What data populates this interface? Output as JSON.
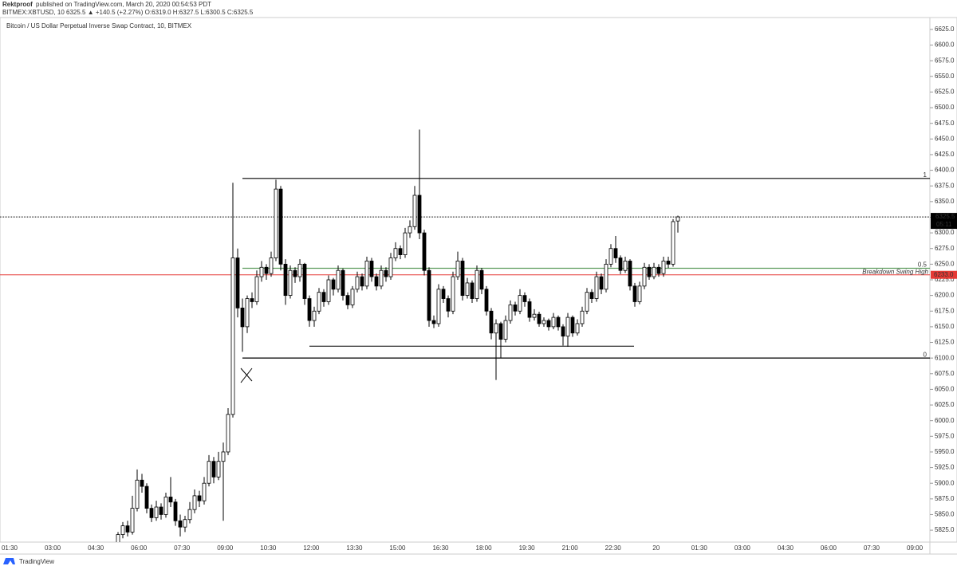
{
  "header": {
    "author": "Rektproof",
    "published": "published on TradingView.com, March 20, 2020 00:54:53 PDT",
    "symbol_line": "BITMEX:XBTUSD, 10  6325.5 ▲ +140.5 (+2.27%) O:6319.0 H:6327.5 L:6300.5 C:6325.5"
  },
  "chart_data": {
    "type": "candlestick",
    "title": "Bitcoin / US Dollar Perpetual Inverse Swap Contract, 10, BITMEX",
    "x_labels": [
      "01:30",
      "03:00",
      "04:30",
      "06:00",
      "07:30",
      "09:00",
      "10:30",
      "12:00",
      "13:30",
      "15:00",
      "16:30",
      "18:00",
      "19:30",
      "21:00",
      "22:30",
      "20",
      "01:30",
      "03:00",
      "04:30",
      "06:00",
      "07:30",
      "09:00"
    ],
    "ylim": [
      5806,
      6644
    ],
    "yticks": [
      {
        "value": 5825,
        "label": "5825.0"
      },
      {
        "value": 5850,
        "label": "5850.0"
      },
      {
        "value": 5875,
        "label": "5875.0"
      },
      {
        "value": 5900,
        "label": "5900.0"
      },
      {
        "value": 5925,
        "label": "5925.0"
      },
      {
        "value": 5950,
        "label": "5950.0"
      },
      {
        "value": 5975,
        "label": "5975.0"
      },
      {
        "value": 6000,
        "label": "6000.0"
      },
      {
        "value": 6025,
        "label": "6025.0"
      },
      {
        "value": 6050,
        "label": "6050.0"
      },
      {
        "value": 6075,
        "label": "6075.0"
      },
      {
        "value": 6100,
        "label": "6100.0"
      },
      {
        "value": 6125,
        "label": "6125.0"
      },
      {
        "value": 6150,
        "label": "6150.0"
      },
      {
        "value": 6175,
        "label": "6175.0"
      },
      {
        "value": 6200,
        "label": "6200.0"
      },
      {
        "value": 6225,
        "label": "6225.0"
      },
      {
        "value": 6250,
        "label": "6250.0"
      },
      {
        "value": 6275,
        "label": "6275.0"
      },
      {
        "value": 6300,
        "label": "6300.0"
      },
      {
        "value": 6325,
        "label": "6325.0"
      },
      {
        "value": 6350,
        "label": "6350.0"
      },
      {
        "value": 6375,
        "label": "6375.0"
      },
      {
        "value": 6400,
        "label": "6400.0"
      },
      {
        "value": 6425,
        "label": "6425.0"
      },
      {
        "value": 6450,
        "label": "6450.0"
      },
      {
        "value": 6475,
        "label": "6475.0"
      },
      {
        "value": 6500,
        "label": "6500.0"
      },
      {
        "value": 6525,
        "label": "6525.0"
      },
      {
        "value": 6550,
        "label": "6550.0"
      },
      {
        "value": 6575,
        "label": "6575.0"
      },
      {
        "value": 6600,
        "label": "6600.0"
      },
      {
        "value": 6625,
        "label": "6625.0"
      }
    ],
    "up_color": "#ffffff",
    "down_color": "#000000",
    "candles": [
      [
        5800,
        5822,
        5796,
        5818
      ],
      [
        5818,
        5838,
        5812,
        5832
      ],
      [
        5832,
        5840,
        5815,
        5822
      ],
      [
        5822,
        5880,
        5818,
        5860
      ],
      [
        5860,
        5922,
        5855,
        5905
      ],
      [
        5905,
        5915,
        5885,
        5895
      ],
      [
        5895,
        5900,
        5852,
        5860
      ],
      [
        5860,
        5866,
        5838,
        5845
      ],
      [
        5845,
        5872,
        5840,
        5862
      ],
      [
        5862,
        5868,
        5842,
        5850
      ],
      [
        5850,
        5885,
        5845,
        5878
      ],
      [
        5878,
        5910,
        5862,
        5870
      ],
      [
        5870,
        5875,
        5832,
        5840
      ],
      [
        5840,
        5850,
        5815,
        5830
      ],
      [
        5830,
        5848,
        5822,
        5842
      ],
      [
        5842,
        5870,
        5836,
        5858
      ],
      [
        5858,
        5890,
        5852,
        5880
      ],
      [
        5880,
        5888,
        5862,
        5872
      ],
      [
        5872,
        5910,
        5866,
        5900
      ],
      [
        5900,
        5945,
        5895,
        5935
      ],
      [
        5935,
        5942,
        5900,
        5910
      ],
      [
        5910,
        5950,
        5905,
        5935
      ],
      [
        5935,
        5965,
        5840,
        5950
      ],
      [
        5950,
        6020,
        5945,
        6010
      ],
      [
        6010,
        6380,
        6005,
        6260
      ],
      [
        6260,
        6275,
        6165,
        6180
      ],
      [
        6180,
        6195,
        6110,
        6150
      ],
      [
        6150,
        6200,
        6140,
        6195
      ],
      [
        6195,
        6205,
        6180,
        6190
      ],
      [
        6190,
        6240,
        6185,
        6230
      ],
      [
        6230,
        6255,
        6222,
        6245
      ],
      [
        6245,
        6250,
        6225,
        6235
      ],
      [
        6235,
        6270,
        6230,
        6260
      ],
      [
        6260,
        6385,
        6255,
        6370
      ],
      [
        6370,
        6375,
        6240,
        6250
      ],
      [
        6250,
        6258,
        6185,
        6200
      ],
      [
        6200,
        6248,
        6195,
        6240
      ],
      [
        6240,
        6245,
        6220,
        6230
      ],
      [
        6230,
        6258,
        6222,
        6250
      ],
      [
        6250,
        6252,
        6185,
        6195
      ],
      [
        6195,
        6200,
        6150,
        6160
      ],
      [
        6160,
        6182,
        6150,
        6175
      ],
      [
        6175,
        6212,
        6170,
        6205
      ],
      [
        6205,
        6210,
        6182,
        6190
      ],
      [
        6190,
        6232,
        6185,
        6225
      ],
      [
        6225,
        6228,
        6200,
        6210
      ],
      [
        6210,
        6248,
        6205,
        6240
      ],
      [
        6240,
        6243,
        6192,
        6200
      ],
      [
        6200,
        6205,
        6178,
        6185
      ],
      [
        6185,
        6215,
        6180,
        6210
      ],
      [
        6210,
        6238,
        6205,
        6230
      ],
      [
        6230,
        6235,
        6208,
        6215
      ],
      [
        6215,
        6262,
        6210,
        6255
      ],
      [
        6255,
        6260,
        6222,
        6230
      ],
      [
        6230,
        6235,
        6208,
        6215
      ],
      [
        6215,
        6248,
        6210,
        6240
      ],
      [
        6240,
        6245,
        6222,
        6230
      ],
      [
        6230,
        6268,
        6225,
        6260
      ],
      [
        6260,
        6285,
        6255,
        6275
      ],
      [
        6275,
        6280,
        6258,
        6265
      ],
      [
        6265,
        6308,
        6260,
        6300
      ],
      [
        6300,
        6320,
        6292,
        6310
      ],
      [
        6310,
        6375,
        6305,
        6360
      ],
      [
        6360,
        6465,
        6290,
        6300
      ],
      [
        6300,
        6305,
        6232,
        6240
      ],
      [
        6240,
        6245,
        6150,
        6160
      ],
      [
        6160,
        6168,
        6148,
        6155
      ],
      [
        6155,
        6218,
        6150,
        6210
      ],
      [
        6210,
        6215,
        6188,
        6195
      ],
      [
        6195,
        6200,
        6165,
        6175
      ],
      [
        6175,
        6238,
        6170,
        6230
      ],
      [
        6230,
        6270,
        6225,
        6255
      ],
      [
        6255,
        6260,
        6192,
        6200
      ],
      [
        6200,
        6228,
        6195,
        6220
      ],
      [
        6220,
        6224,
        6188,
        6195
      ],
      [
        6195,
        6248,
        6190,
        6240
      ],
      [
        6240,
        6244,
        6202,
        6210
      ],
      [
        6210,
        6215,
        6168,
        6175
      ],
      [
        6175,
        6180,
        6130,
        6140
      ],
      [
        6140,
        6162,
        6065,
        6155
      ],
      [
        6155,
        6158,
        6100,
        6130
      ],
      [
        6130,
        6168,
        6125,
        6160
      ],
      [
        6160,
        6192,
        6155,
        6185
      ],
      [
        6185,
        6190,
        6168,
        6175
      ],
      [
        6175,
        6210,
        6170,
        6200
      ],
      [
        6200,
        6205,
        6182,
        6190
      ],
      [
        6190,
        6195,
        6158,
        6165
      ],
      [
        6165,
        6178,
        6160,
        6170
      ],
      [
        6170,
        6174,
        6150,
        6155
      ],
      [
        6155,
        6165,
        6150,
        6160
      ],
      [
        6160,
        6163,
        6144,
        6150
      ],
      [
        6150,
        6172,
        6146,
        6165
      ],
      [
        6165,
        6168,
        6144,
        6150
      ],
      [
        6150,
        6154,
        6120,
        6135
      ],
      [
        6135,
        6172,
        6118,
        6165
      ],
      [
        6165,
        6168,
        6134,
        6140
      ],
      [
        6140,
        6162,
        6136,
        6155
      ],
      [
        6155,
        6182,
        6150,
        6175
      ],
      [
        6175,
        6212,
        6170,
        6205
      ],
      [
        6205,
        6210,
        6188,
        6195
      ],
      [
        6195,
        6238,
        6190,
        6230
      ],
      [
        6230,
        6235,
        6202,
        6210
      ],
      [
        6210,
        6258,
        6205,
        6250
      ],
      [
        6250,
        6282,
        6245,
        6275
      ],
      [
        6275,
        6295,
        6252,
        6260
      ],
      [
        6260,
        6264,
        6234,
        6240
      ],
      [
        6240,
        6262,
        6236,
        6255
      ],
      [
        6255,
        6258,
        6208,
        6215
      ],
      [
        6215,
        6220,
        6182,
        6190
      ],
      [
        6190,
        6222,
        6186,
        6215
      ],
      [
        6215,
        6252,
        6210,
        6245
      ],
      [
        6245,
        6250,
        6225,
        6230
      ],
      [
        6230,
        6252,
        6226,
        6245
      ],
      [
        6245,
        6250,
        6230,
        6235
      ],
      [
        6235,
        6262,
        6230,
        6255
      ],
      [
        6255,
        6262,
        6244,
        6250
      ],
      [
        6250,
        6322,
        6246,
        6318
      ],
      [
        6319,
        6327.5,
        6300.5,
        6325.5
      ]
    ],
    "last_price": 6325.5,
    "countdown": "05:11",
    "fib_levels": [
      {
        "label": "1",
        "price": 6387,
        "color": "#000000"
      },
      {
        "label": "0.5",
        "price": 6243.5,
        "color": "#5a9a5a"
      },
      {
        "label": "0",
        "price": 6100,
        "color": "#000000"
      }
    ],
    "fib_note": "Breakdown Swing High",
    "red_line": {
      "price": {
        "value": 6233,
        "label": "6233.0"
      },
      "color": "#e53935"
    },
    "support_line": {
      "price": 6119,
      "color": "#000000"
    }
  },
  "footer": "TradingView"
}
